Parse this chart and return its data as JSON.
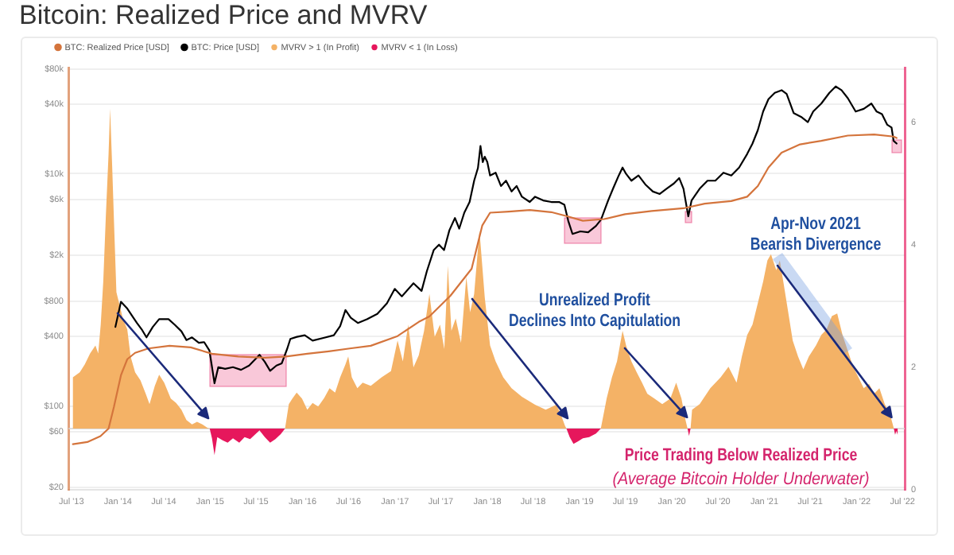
{
  "chart_data": {
    "type": "line",
    "title": "Bitcoin: Realized Price and MVRV",
    "x": [
      "2013-07-07",
      "2013-08-03",
      "2013-08-23",
      "2013-09-13",
      "2013-10-04",
      "2013-10-15",
      "2013-10-25",
      "2013-11-04",
      "2013-11-14",
      "2013-11-25",
      "2013-12-01",
      "2013-12-09",
      "2013-12-18",
      "2013-12-26",
      "2014-01-08",
      "2014-01-21",
      "2014-02-07",
      "2014-02-20",
      "2014-03-10",
      "2014-03-31",
      "2014-04-21",
      "2014-05-06",
      "2014-05-27",
      "2014-06-13",
      "2014-07-03",
      "2014-07-29",
      "2014-08-19",
      "2014-09-09",
      "2014-09-29",
      "2014-10-21",
      "2014-11-10",
      "2014-12-01",
      "2014-12-22",
      "2014-12-30",
      "2015-01-08",
      "2015-01-18",
      "2015-01-29",
      "2015-02-19",
      "2015-03-11",
      "2015-04-01",
      "2015-04-26",
      "2015-05-17",
      "2015-06-08",
      "2015-06-29",
      "2015-07-15",
      "2015-08-05",
      "2015-08-26",
      "2015-09-16",
      "2015-10-07",
      "2015-10-24",
      "2015-11-08",
      "2015-11-22",
      "2015-12-09",
      "2015-12-30",
      "2016-01-20",
      "2016-02-10",
      "2016-03-03",
      "2016-03-27",
      "2016-04-17",
      "2016-05-09",
      "2016-05-29",
      "2016-06-19",
      "2016-06-30",
      "2016-07-14",
      "2016-08-05",
      "2016-08-26",
      "2016-09-27",
      "2016-11-09",
      "2016-12-16",
      "2017-01-11",
      "2017-02-01",
      "2017-02-22",
      "2017-03-15",
      "2017-04-05",
      "2017-04-26",
      "2017-05-17",
      "2017-06-07",
      "2017-06-28",
      "2017-07-15",
      "2017-07-29",
      "2017-08-12",
      "2017-08-29",
      "2017-09-19",
      "2017-10-10",
      "2017-10-25",
      "2017-11-10",
      "2017-12-01",
      "2017-12-22",
      "2018-01-12",
      "2018-02-03",
      "2018-03-05",
      "2018-04-07",
      "2018-05-18",
      "2018-07-09",
      "2018-08-20",
      "2018-10-01",
      "2018-10-18",
      "2018-11-04",
      "2018-11-10",
      "2018-11-23",
      "2018-12-08",
      "2018-12-25",
      "2019-01-14",
      "2019-02-08",
      "2019-03-07",
      "2019-03-26",
      "2019-04-18",
      "2019-05-09",
      "2019-05-29",
      "2019-06-20",
      "2019-07-04",
      "2019-07-25",
      "2019-08-15",
      "2019-09-05",
      "2019-09-26",
      "2019-10-24",
      "2019-11-24",
      "2019-12-26",
      "2020-01-18",
      "2020-02-08",
      "2020-02-24",
      "2020-03-03",
      "2020-03-09",
      "2020-03-15",
      "2020-03-21",
      "2020-04-20",
      "2020-06-01",
      "2020-07-12",
      "2020-08-12",
      "2020-09-13",
      "2020-10-04",
      "2020-10-25",
      "2020-11-15",
      "2020-12-06",
      "2020-12-27",
      "2021-01-13",
      "2021-01-27",
      "2021-02-17",
      "2021-03-03",
      "2021-03-20",
      "2021-04-06",
      "2021-04-23",
      "2021-05-14",
      "2021-06-04",
      "2021-06-26",
      "2021-07-24",
      "2021-08-14",
      "2021-09-04",
      "2021-09-25",
      "2021-10-16",
      "2021-11-06",
      "2021-11-27",
      "2021-12-18",
      "2022-01-08",
      "2022-01-29",
      "2022-02-19",
      "2022-03-11",
      "2022-04-01",
      "2022-04-22",
      "2022-05-13",
      "2022-05-25",
      "2022-05-28",
      "2022-06-02",
      "2022-06-07",
      "2022-06-12"
    ],
    "xlim": [
      "2013-06-19",
      "2022-07-10"
    ],
    "xticks": [
      {
        "value": "2013-07-01",
        "label": "Jul '13"
      },
      {
        "value": "2014-01-01",
        "label": "Jan '14"
      },
      {
        "value": "2014-07-01",
        "label": "Jul '14"
      },
      {
        "value": "2015-01-01",
        "label": "Jan '15"
      },
      {
        "value": "2015-07-01",
        "label": "Jul '15"
      },
      {
        "value": "2016-01-01",
        "label": "Jan '16"
      },
      {
        "value": "2016-07-01",
        "label": "Jul '16"
      },
      {
        "value": "2017-01-01",
        "label": "Jan '17"
      },
      {
        "value": "2017-07-01",
        "label": "Jul '17"
      },
      {
        "value": "2018-01-01",
        "label": "Jan '18"
      },
      {
        "value": "2018-07-01",
        "label": "Jul '18"
      },
      {
        "value": "2019-01-01",
        "label": "Jan '19"
      },
      {
        "value": "2019-07-01",
        "label": "Jul '19"
      },
      {
        "value": "2020-01-01",
        "label": "Jan '20"
      },
      {
        "value": "2020-07-01",
        "label": "Jul '20"
      },
      {
        "value": "2021-01-01",
        "label": "Jan '21"
      },
      {
        "value": "2021-07-01",
        "label": "Jul '21"
      },
      {
        "value": "2022-01-01",
        "label": "Jan '22"
      },
      {
        "value": "2022-07-01",
        "label": "Jul '22"
      }
    ],
    "ylim": [
      19,
      82000
    ],
    "yticks": [
      {
        "value": 20,
        "label": "$20"
      },
      {
        "value": 60,
        "label": "$60"
      },
      {
        "value": 100,
        "label": "$100"
      },
      {
        "value": 400,
        "label": "$400"
      },
      {
        "value": 800,
        "label": "$800"
      },
      {
        "value": 2000,
        "label": "$2k"
      },
      {
        "value": 6000,
        "label": "$6k"
      },
      {
        "value": 10000,
        "label": "$10k"
      },
      {
        "value": 40000,
        "label": "$40k"
      },
      {
        "value": 80000,
        "label": "$80k"
      }
    ],
    "y2lim": [
      0,
      6.9
    ],
    "y2ticks": [
      0,
      2,
      4,
      6
    ],
    "log": "y",
    "grid": "y",
    "legend": "top left",
    "ref_lines": [
      {
        "axis": "y2",
        "value": 1
      }
    ],
    "annotations": [
      {
        "text": "Unrealized Profit\nDeclines Into Capitulation",
        "x": "2020-03-01",
        "y": 80
      },
      {
        "text": "Apr-Nov 2021\nBearish Divergence",
        "x": "2022-05-19",
        "y": 80
      },
      "Price Trading Below Realized Price",
      "(Average Bitcoin Holder Underwater)"
    ],
    "series": [
      {
        "name": "BTC: Realized Price [USD]",
        "type": "line",
        "color": "#d4743c",
        "x": [
          "2013-07-07",
          "2013-09-02",
          "2013-10-24",
          "2013-11-25",
          "2013-12-16",
          "2014-01-13",
          "2014-02-07",
          "2014-03-10",
          "2014-05-01",
          "2014-07-24",
          "2014-10-16",
          "2015-01-08",
          "2015-04-22",
          "2015-08-05",
          "2015-10-28",
          "2016-01-20",
          "2016-04-14",
          "2016-07-06",
          "2016-09-27",
          "2017-01-11",
          "2017-04-05",
          "2017-05-17",
          "2017-08-08",
          "2017-10-31",
          "2017-12-12",
          "2018-01-12",
          "2018-03-27",
          "2018-06-18",
          "2018-09-11",
          "2018-11-13",
          "2019-01-14",
          "2019-04-08",
          "2019-06-30",
          "2019-10-13",
          "2020-02-16",
          "2020-05-10",
          "2020-08-23",
          "2020-10-25",
          "2020-12-06",
          "2021-01-17",
          "2021-03-10",
          "2021-05-22",
          "2021-08-14",
          "2021-11-27",
          "2022-03-11",
          "2022-05-27",
          "2022-06-08"
        ],
        "values": [
          47,
          49,
          55,
          64,
          98,
          184,
          253,
          287,
          313,
          330,
          320,
          282,
          267,
          261,
          267,
          282,
          296,
          313,
          330,
          400,
          530,
          590,
          890,
          1520,
          3580,
          4620,
          4720,
          4870,
          4670,
          4300,
          3940,
          4070,
          4480,
          4770,
          5040,
          5530,
          5820,
          6340,
          7840,
          11300,
          15200,
          17900,
          19200,
          21300,
          21800,
          20900,
          20300
        ]
      },
      {
        "name": "BTC: Price [USD]",
        "type": "line",
        "color": "#000000",
        "x": [
          "2013-12-22",
          "2014-01-13",
          "2014-02-07",
          "2014-02-28",
          "2014-03-17",
          "2014-04-07",
          "2014-04-24",
          "2014-05-19",
          "2014-06-13",
          "2014-07-20",
          "2014-08-14",
          "2014-09-09",
          "2014-09-29",
          "2014-10-21",
          "2014-11-17",
          "2014-12-08",
          "2014-12-29",
          "2015-01-18",
          "2015-02-02",
          "2015-03-01",
          "2015-04-01",
          "2015-05-03",
          "2015-06-04",
          "2015-07-15",
          "2015-08-05",
          "2015-08-26",
          "2015-09-20",
          "2015-10-11",
          "2015-11-02",
          "2015-11-14",
          "2015-12-10",
          "2016-01-10",
          "2016-02-10",
          "2016-03-27",
          "2016-05-04",
          "2016-05-29",
          "2016-06-19",
          "2016-07-10",
          "2016-08-07",
          "2016-09-12",
          "2016-10-23",
          "2016-11-30",
          "2016-12-31",
          "2017-01-28",
          "2017-03-15",
          "2017-04-16",
          "2017-05-07",
          "2017-06-03",
          "2017-06-24",
          "2017-07-14",
          "2017-08-04",
          "2017-08-26",
          "2017-09-12",
          "2017-10-02",
          "2017-10-23",
          "2017-11-10",
          "2017-11-25",
          "2017-12-05",
          "2017-12-14",
          "2017-12-22",
          "2018-01-01",
          "2018-01-12",
          "2018-02-03",
          "2018-02-24",
          "2018-03-16",
          "2018-04-07",
          "2018-04-27",
          "2018-05-18",
          "2018-06-18",
          "2018-07-09",
          "2018-08-10",
          "2018-09-11",
          "2018-10-12",
          "2018-11-02",
          "2018-11-17",
          "2018-12-04",
          "2019-01-04",
          "2019-02-04",
          "2019-03-07",
          "2019-03-27",
          "2019-04-24",
          "2019-05-15",
          "2019-06-05",
          "2019-06-20",
          "2019-07-04",
          "2019-07-25",
          "2019-08-22",
          "2019-09-18",
          "2019-10-18",
          "2019-11-14",
          "2019-12-11",
          "2020-01-09",
          "2020-01-30",
          "2020-02-16",
          "2020-03-06",
          "2020-03-19",
          "2020-04-20",
          "2020-05-21",
          "2020-06-21",
          "2020-07-23",
          "2020-08-23",
          "2020-09-23",
          "2020-10-25",
          "2020-11-15",
          "2020-12-06",
          "2020-12-27",
          "2021-01-17",
          "2021-02-11",
          "2021-03-10",
          "2021-03-30",
          "2021-04-27",
          "2021-05-26",
          "2021-06-22",
          "2021-07-13",
          "2021-08-14",
          "2021-09-15",
          "2021-10-10",
          "2021-11-02",
          "2021-11-27",
          "2021-12-28",
          "2022-01-29",
          "2022-02-28",
          "2022-03-21",
          "2022-04-11",
          "2022-05-02",
          "2022-05-19",
          "2022-05-27",
          "2022-06-08"
        ],
        "values": [
          480,
          790,
          690,
          590,
          520,
          450,
          390,
          480,
          560,
          560,
          500,
          440,
          370,
          390,
          350,
          355,
          300,
          157,
          216,
          209,
          216,
          205,
          223,
          276,
          240,
          201,
          223,
          233,
          313,
          378,
          394,
          407,
          366,
          387,
          407,
          488,
          670,
          576,
          519,
          558,
          622,
          766,
          1020,
          880,
          1140,
          980,
          1450,
          2200,
          2450,
          2200,
          3260,
          4160,
          3370,
          4620,
          5710,
          8710,
          11200,
          17300,
          12600,
          14000,
          12600,
          9660,
          10200,
          7840,
          8710,
          7030,
          7840,
          6340,
          5710,
          6340,
          5890,
          5710,
          5710,
          5410,
          3940,
          3030,
          3190,
          3130,
          3550,
          4030,
          5890,
          7590,
          9660,
          11300,
          9970,
          8710,
          9660,
          8090,
          7030,
          6690,
          7430,
          8240,
          9180,
          7430,
          4300,
          5890,
          7430,
          8710,
          8710,
          10200,
          9660,
          11300,
          14800,
          18200,
          23700,
          34300,
          43800,
          49700,
          52400,
          48600,
          33200,
          30900,
          27800,
          34300,
          40200,
          49700,
          56400,
          52400,
          44700,
          34300,
          36200,
          40200,
          34300,
          32600,
          26400,
          25000,
          19200,
          18200
        ]
      },
      {
        "name": "MVRV > 1 (In Profit)",
        "type": "area",
        "axis": "y2",
        "color": "#f4b266",
        "values": [
          1.84,
          1.92,
          2.05,
          2.23,
          2.36,
          2.23,
          2.7,
          3.4,
          4.45,
          5.49,
          6.23,
          5.32,
          4.19,
          3.23,
          3.01,
          2.79,
          2.62,
          2.18,
          1.92,
          1.79,
          1.57,
          1.4,
          1.7,
          1.88,
          1.75,
          1.49,
          1.42,
          1.31,
          1.14,
          1.07,
          1.11,
          1.07,
          1.01,
          1,
          null,
          null,
          null,
          null,
          null,
          null,
          null,
          null,
          null,
          null,
          null,
          null,
          null,
          null,
          null,
          1,
          1.4,
          1.49,
          1.59,
          1.49,
          1.31,
          1.42,
          1.36,
          1.5,
          1.66,
          1.59,
          1.84,
          2.05,
          2.18,
          1.84,
          1.66,
          1.75,
          1.7,
          1.84,
          1.94,
          2.44,
          2.1,
          2.7,
          2.0,
          2.2,
          2.6,
          3.2,
          2.5,
          2.7,
          2.3,
          3.66,
          2.6,
          2.8,
          2.4,
          3.48,
          2.9,
          3.2,
          4.24,
          3.14,
          2.36,
          2.1,
          1.84,
          1.66,
          1.52,
          1.39,
          1.31,
          1.39,
          1.24,
          1.05,
          1,
          null,
          null,
          null,
          null,
          null,
          null,
          1,
          1.49,
          1.84,
          2.1,
          2.6,
          2.36,
          2.1,
          1.92,
          1.75,
          1.57,
          1.49,
          1.4,
          1.49,
          1.75,
          1.49,
          1.14,
          1,
          null,
          1,
          1.31,
          1.4,
          1.66,
          1.84,
          2.01,
          1.75,
          2.18,
          2.53,
          2.7,
          3.05,
          3.4,
          3.75,
          3.85,
          3.59,
          3.75,
          3.32,
          2.88,
          2.44,
          2.18,
          1.97,
          2.18,
          2.36,
          2.53,
          2.62,
          2.84,
          2.88,
          2.53,
          2.27,
          2.01,
          1.84,
          1.66,
          1.73,
          1.57,
          1.66,
          1.4,
          1.23,
          1.05,
          1,
          null,
          null,
          null
        ]
      },
      {
        "name": "MVRV < 1 (In Loss)",
        "type": "area",
        "axis": "y2",
        "color": "#e6175c",
        "values": [
          null,
          null,
          null,
          null,
          null,
          null,
          null,
          null,
          null,
          null,
          null,
          null,
          null,
          null,
          null,
          null,
          null,
          null,
          null,
          null,
          null,
          null,
          null,
          null,
          null,
          null,
          null,
          null,
          null,
          null,
          null,
          null,
          null,
          1,
          0.84,
          0.57,
          0.86,
          0.81,
          0.77,
          0.84,
          0.77,
          0.86,
          0.83,
          0.91,
          0.97,
          0.86,
          0.77,
          0.83,
          0.91,
          1,
          null,
          null,
          null,
          null,
          null,
          null,
          null,
          null,
          null,
          null,
          null,
          null,
          null,
          null,
          null,
          null,
          null,
          null,
          null,
          null,
          null,
          null,
          null,
          null,
          null,
          null,
          null,
          null,
          null,
          null,
          null,
          null,
          null,
          null,
          null,
          null,
          null,
          null,
          null,
          null,
          null,
          null,
          null,
          null,
          null,
          null,
          null,
          null,
          1,
          0.86,
          0.75,
          0.79,
          0.84,
          0.86,
          0.92,
          1,
          null,
          null,
          null,
          null,
          null,
          null,
          null,
          null,
          null,
          null,
          null,
          null,
          null,
          null,
          null,
          1,
          0.88,
          1,
          null,
          null,
          null,
          null,
          null,
          null,
          null,
          null,
          null,
          null,
          null,
          null,
          null,
          null,
          null,
          null,
          null,
          null,
          null,
          null,
          null,
          null,
          null,
          null,
          null,
          null,
          null,
          null,
          null,
          null,
          null,
          null,
          null,
          null,
          null,
          null,
          null,
          1,
          0.9,
          0.96,
          0.9
        ]
      }
    ]
  }
}
